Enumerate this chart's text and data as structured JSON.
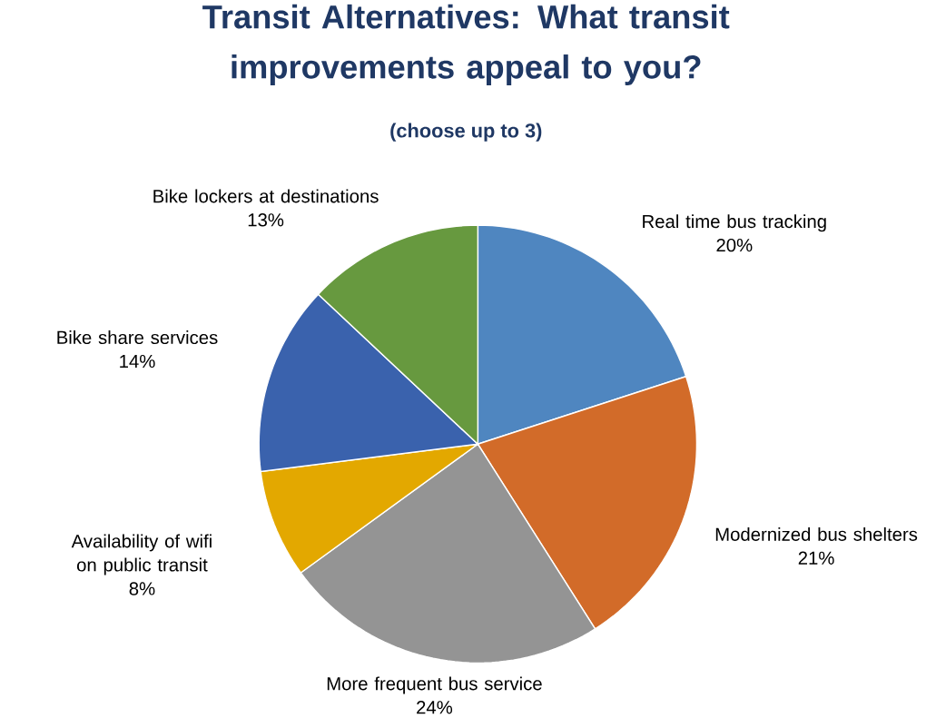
{
  "chart_data": {
    "type": "pie",
    "title": "Transit Alternatives: What transit improvements appeal to you?",
    "subtitle": "(choose up to 3)",
    "categories": [
      "Real time bus tracking",
      "Modernized bus shelters",
      "More frequent bus service",
      "Availability of wifi on public transit",
      "Bike share services",
      "Bike lockers at destinations"
    ],
    "values": [
      20,
      21,
      24,
      8,
      14,
      13
    ],
    "value_labels": [
      "20%",
      "21%",
      "24%",
      "8%",
      "14%",
      "13%"
    ],
    "colors": [
      "#4f86c0",
      "#d26b29",
      "#949494",
      "#e3a800",
      "#3a62ad",
      "#67993f"
    ]
  }
}
